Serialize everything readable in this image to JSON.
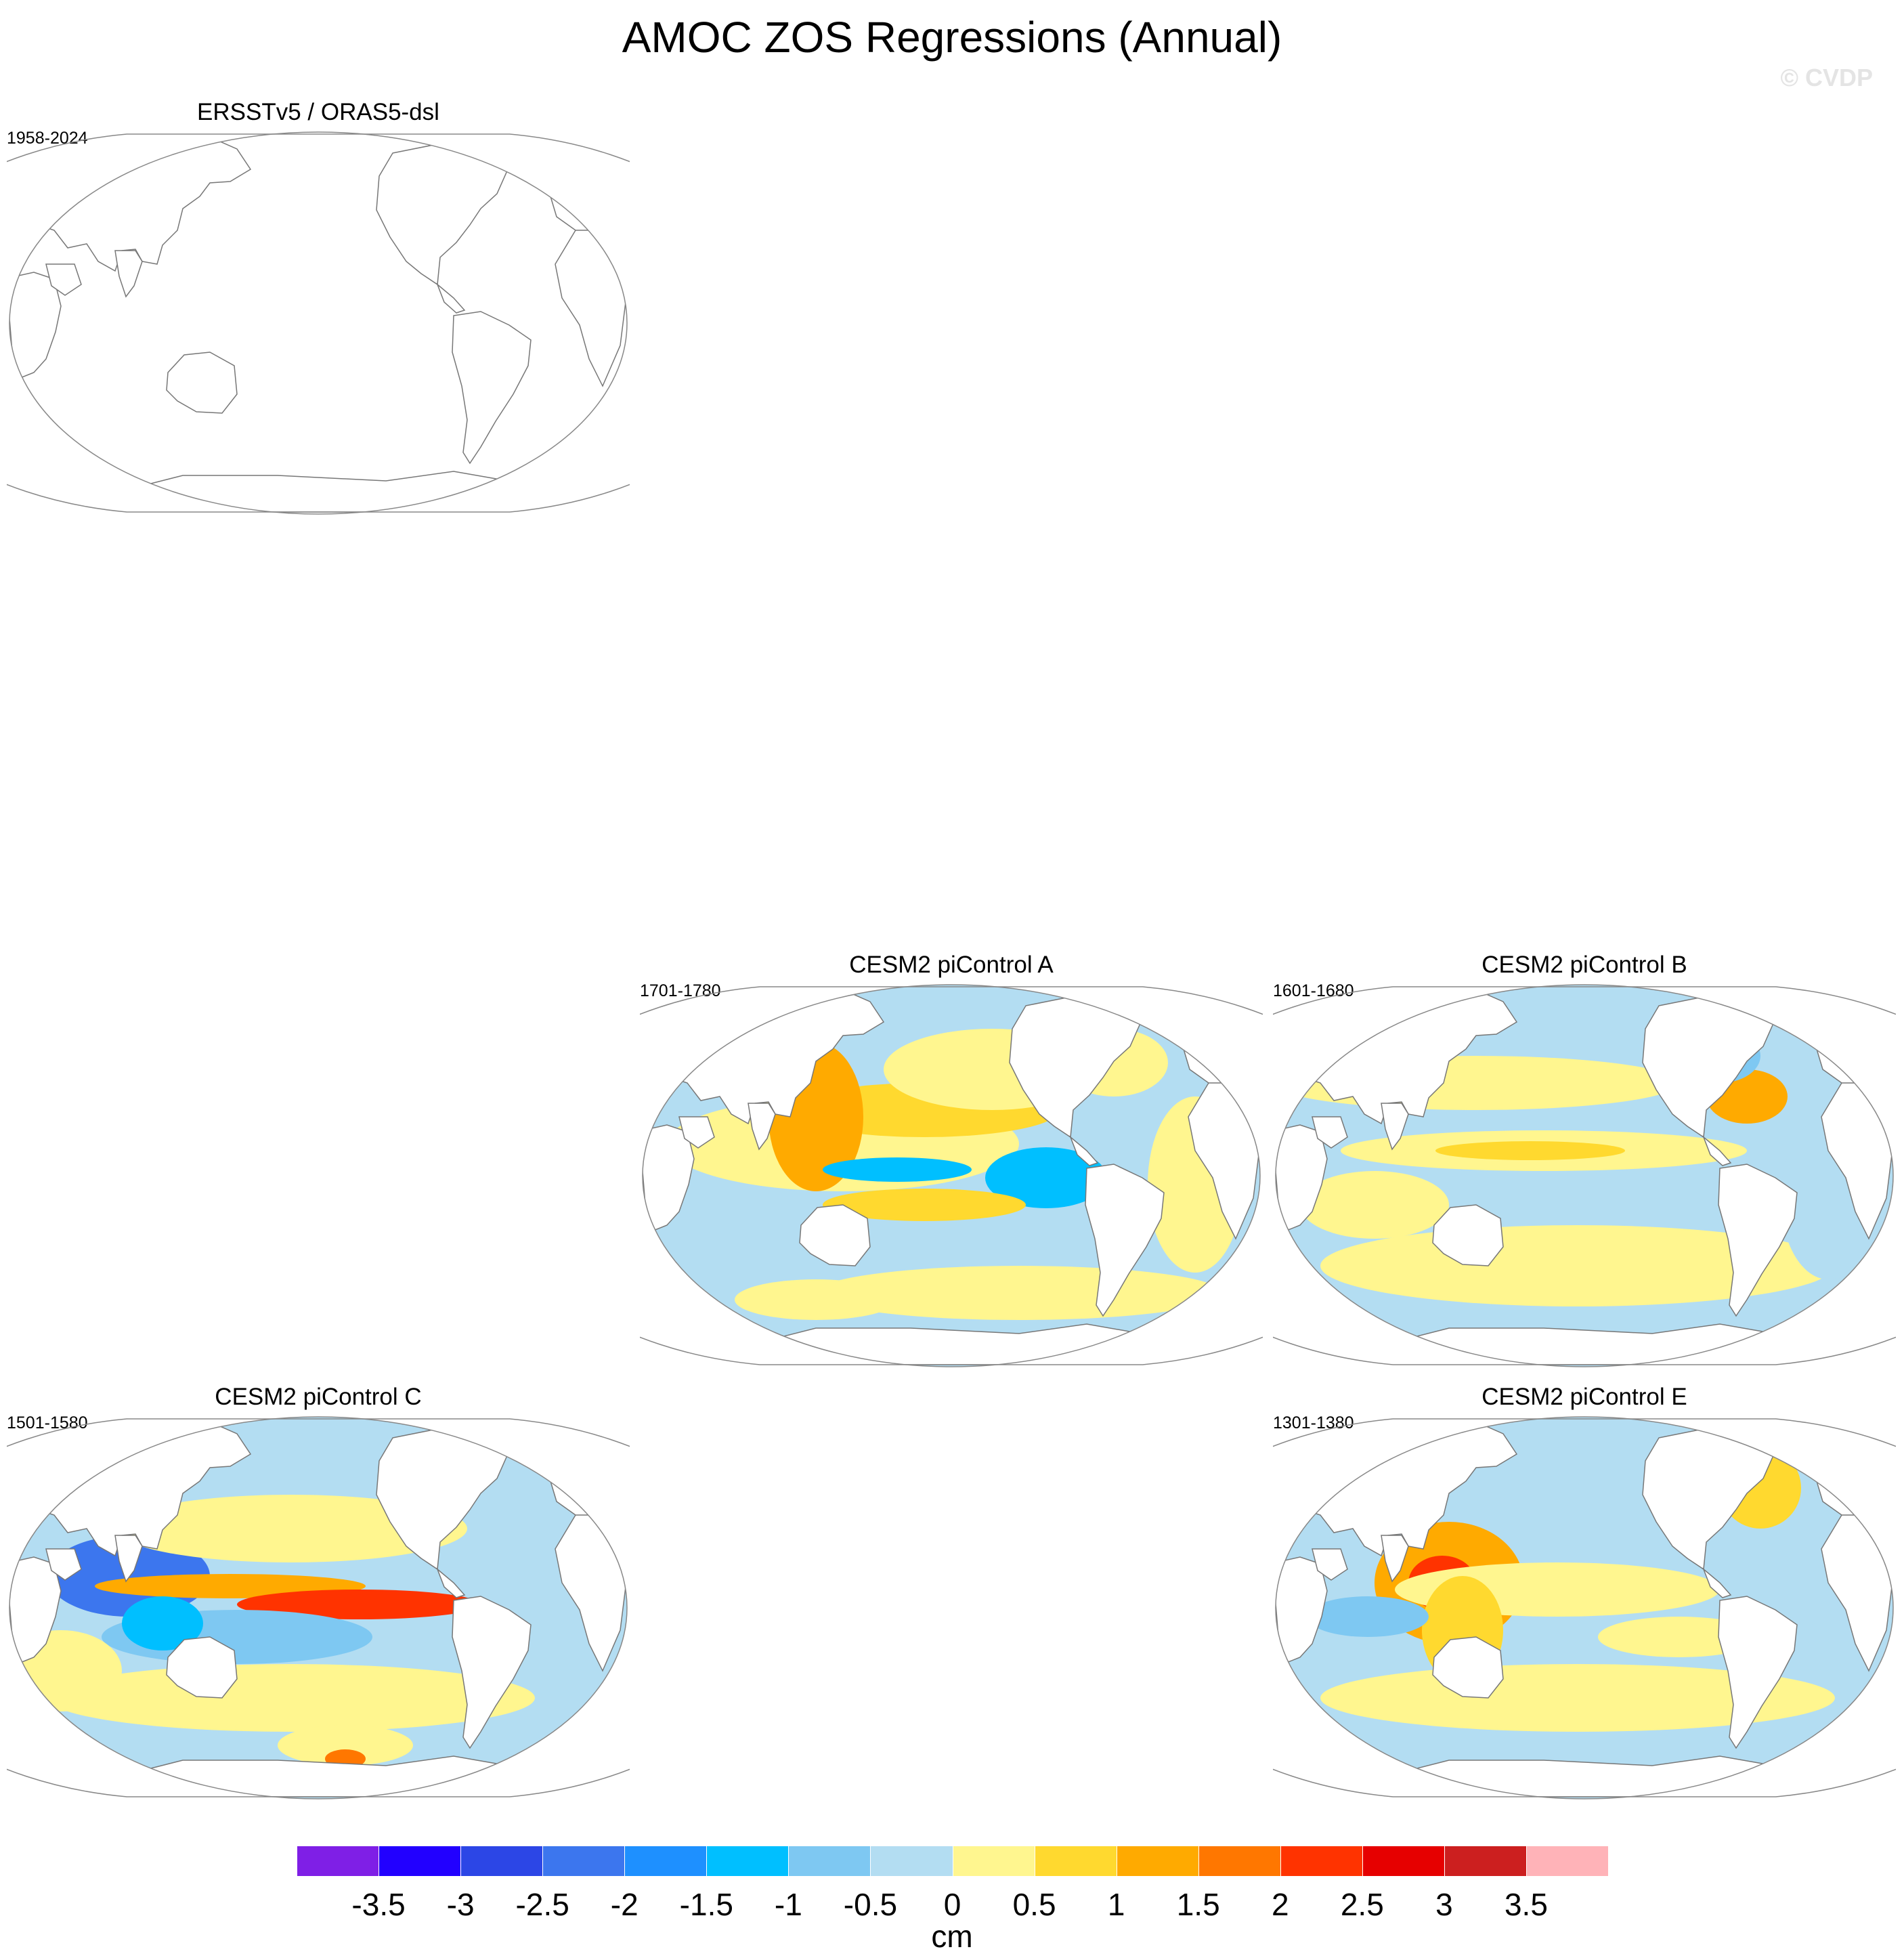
{
  "title": "AMOC ZOS Regressions (Annual)",
  "watermark": "© CVDP",
  "panels": [
    {
      "id": "obs",
      "title": "ERSSTv5 / ORAS5-dsl",
      "period": "1958-2024",
      "has_data": false
    },
    {
      "id": "a",
      "title": "CESM2 piControl A",
      "period": "1701-1780",
      "has_data": true
    },
    {
      "id": "b",
      "title": "CESM2 piControl B",
      "period": "1601-1680",
      "has_data": true
    },
    {
      "id": "c",
      "title": "CESM2 piControl C",
      "period": "1501-1580",
      "has_data": true
    },
    {
      "id": "e",
      "title": "CESM2 piControl E",
      "period": "1301-1380",
      "has_data": true
    }
  ],
  "colorbar": {
    "units": "cm",
    "labels": [
      "-3.5",
      "-3",
      "-2.5",
      "-2",
      "-1.5",
      "-1",
      "-0.5",
      "0",
      "0.5",
      "1",
      "1.5",
      "2",
      "2.5",
      "3",
      "3.5"
    ],
    "colors": [
      "#7f1fe6",
      "#2200ff",
      "#2c46e6",
      "#3c76ee",
      "#1e90ff",
      "#00bfff",
      "#7ec8f2",
      "#b3ddf2",
      "#fff68f",
      "#ffd92f",
      "#ffaa00",
      "#ff7700",
      "#ff3300",
      "#e60000",
      "#cc1f1f",
      "#ffb3b8"
    ]
  }
}
